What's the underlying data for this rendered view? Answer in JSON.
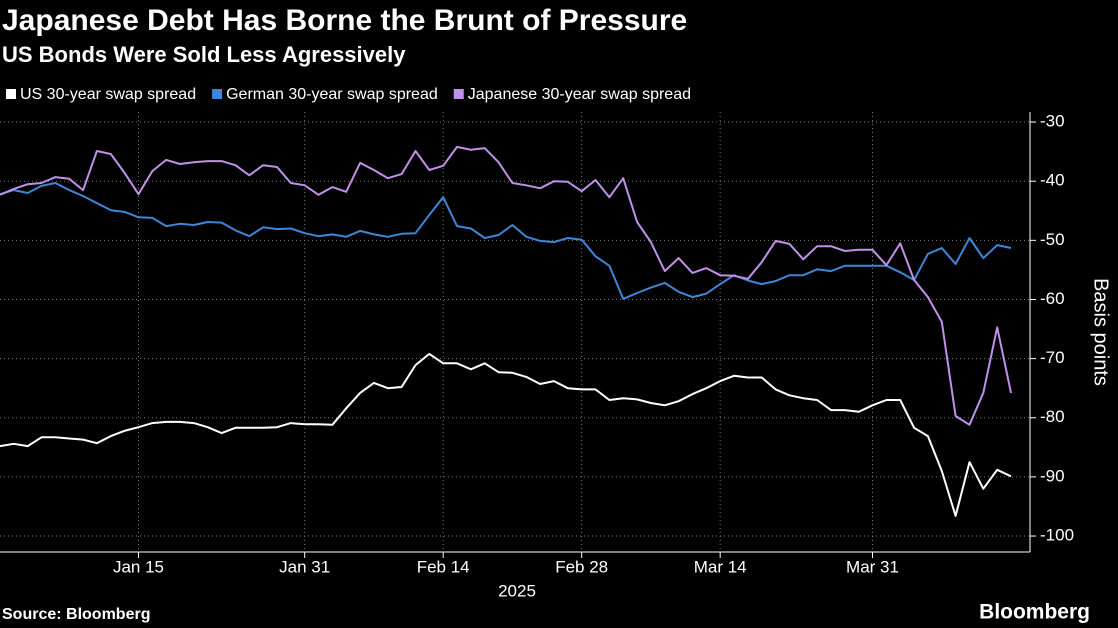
{
  "chart_data": {
    "type": "line",
    "title": "Japanese Debt Has Borne the Brunt of Pressure",
    "subtitle": "US Bonds Were Sold Less Agressively",
    "y_label": "Basis points",
    "year_label": "2025",
    "source": "Source: Bloomberg",
    "brand": "Bloomberg",
    "categories": [
      null,
      null,
      null,
      null,
      null,
      null,
      null,
      null,
      null,
      null,
      "Jan 15",
      null,
      null,
      null,
      null,
      null,
      null,
      null,
      null,
      null,
      null,
      null,
      "Jan 31",
      null,
      null,
      null,
      null,
      null,
      null,
      null,
      null,
      null,
      "Feb 14",
      null,
      null,
      null,
      null,
      null,
      null,
      null,
      null,
      null,
      "Feb 28",
      null,
      null,
      null,
      null,
      null,
      null,
      null,
      null,
      null,
      "Mar 14",
      null,
      null,
      null,
      null,
      null,
      null,
      null,
      null,
      null,
      null,
      "Mar 31",
      null,
      null,
      null,
      null,
      null,
      null,
      null,
      null,
      null,
      null
    ],
    "series": [
      {
        "name": "US 30-year swap spread",
        "color": "#ffffff",
        "values": [
          -84.8,
          -84.4,
          -84.8,
          -83.3,
          -83.3,
          -83.5,
          -83.7,
          -84.3,
          -83.1,
          -82.2,
          -81.6,
          -80.9,
          -80.7,
          -80.7,
          -80.9,
          -81.6,
          -82.6,
          -81.7,
          -81.7,
          -81.7,
          -81.6,
          -80.9,
          -81.1,
          -81.1,
          -81.2,
          -78.4,
          -75.8,
          -74.1,
          -75,
          -74.8,
          -71.1,
          -69.2,
          -70.8,
          -70.8,
          -71.8,
          -70.8,
          -72.3,
          -72.4,
          -73.1,
          -74.3,
          -73.8,
          -75,
          -75.2,
          -75.2,
          -77,
          -76.7,
          -76.9,
          -77.5,
          -77.9,
          -77.2,
          -76,
          -75,
          -73.8,
          -72.9,
          -73.2,
          -73.2,
          -75.2,
          -76.2,
          -76.7,
          -77,
          -78.7,
          -78.7,
          -79,
          -77.9,
          -77,
          -77,
          -81.7,
          -83.1,
          -89,
          -96.6,
          -87.5,
          -92,
          -88.8,
          -89.9
        ]
      },
      {
        "name": "German 30-year swap spread",
        "color": "#3d87d8",
        "values": [
          -42.2,
          -41.5,
          -42,
          -40.8,
          -40.3,
          -41.5,
          -42.5,
          -43.7,
          -44.9,
          -45.2,
          -46.1,
          -46.2,
          -47.6,
          -47.2,
          -47.4,
          -46.9,
          -47,
          -48.3,
          -49.3,
          -47.8,
          -48.1,
          -48,
          -48.8,
          -49.3,
          -49,
          -49.4,
          -48.4,
          -49,
          -49.4,
          -48.9,
          -48.8,
          -45.7,
          -42.7,
          -47.6,
          -48,
          -49.6,
          -49.1,
          -47.4,
          -49.4,
          -50.1,
          -50.3,
          -49.6,
          -49.9,
          -52.7,
          -54.3,
          -59.9,
          -58.9,
          -58,
          -57.2,
          -58.7,
          -59.6,
          -59,
          -57.4,
          -55.9,
          -56.8,
          -57.4,
          -56.9,
          -55.9,
          -55.9,
          -54.9,
          -55.2,
          -54.3,
          -54.3,
          -54.3,
          -54.3,
          -55.4,
          -56.7,
          -52.3,
          -51.3,
          -54,
          -49.6,
          -53,
          -50.8,
          -51.3
        ]
      },
      {
        "name": "Japanese 30-year swap spread",
        "color": "#c190e8",
        "values": [
          -42.3,
          -41.3,
          -40.5,
          -40.3,
          -39.3,
          -39.6,
          -41.5,
          -34.9,
          -35.4,
          -38.6,
          -42.2,
          -38.3,
          -36.4,
          -37.1,
          -36.8,
          -36.6,
          -36.6,
          -37.3,
          -39,
          -37.3,
          -37.6,
          -40.3,
          -40.7,
          -42.3,
          -41,
          -41.8,
          -36.9,
          -38.1,
          -39.5,
          -38.8,
          -34.9,
          -38.1,
          -37.4,
          -34.2,
          -34.7,
          -34.4,
          -36.8,
          -40.3,
          -40.7,
          -41.2,
          -40,
          -40.1,
          -41.7,
          -39.8,
          -42.7,
          -39.5,
          -46.9,
          -50.3,
          -55.2,
          -53,
          -55.5,
          -54.7,
          -55.9,
          -56,
          -56.5,
          -53.7,
          -50.1,
          -50.6,
          -53.2,
          -51,
          -51,
          -51.8,
          -51.6,
          -51.6,
          -54.2,
          -50.5,
          -56.7,
          -59.6,
          -63.8,
          -79.7,
          -81.2,
          -75.8,
          -64.7,
          -75.8
        ]
      }
    ],
    "ylim": [
      -102.7,
      -28.3
    ],
    "yticks": [
      -30,
      -40,
      -50,
      -60,
      -70,
      -80,
      -90,
      -100
    ],
    "grid": true
  }
}
